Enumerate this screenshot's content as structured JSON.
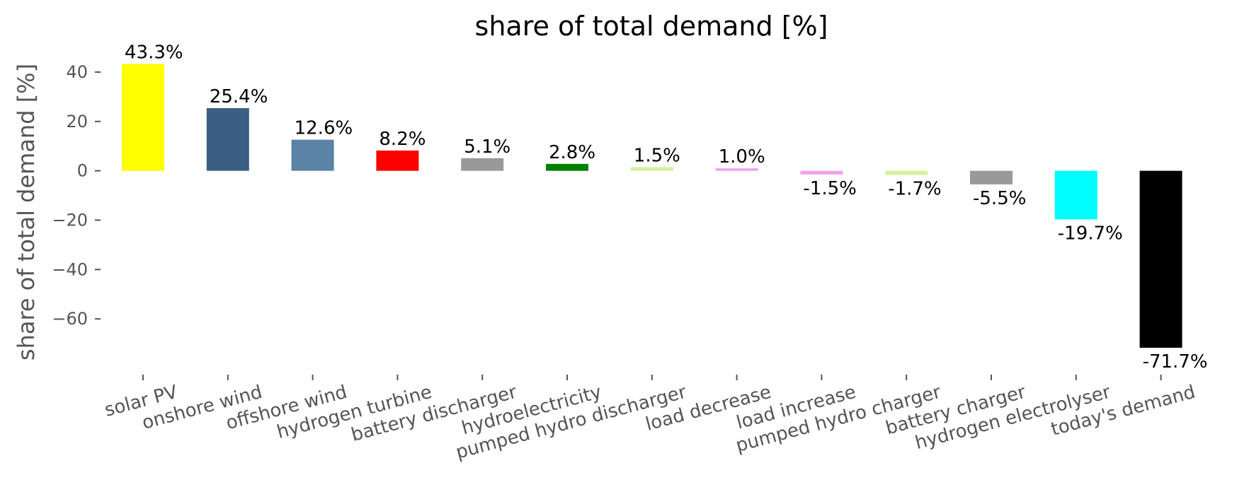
{
  "chart_data": {
    "type": "bar",
    "title": "share of total demand [%]",
    "xlabel": "",
    "ylabel": "share of total demand [%]",
    "ylim": [
      -78,
      44
    ],
    "yticks": [
      40,
      20,
      0,
      -20,
      -40,
      -60
    ],
    "ytick_labels": [
      "40",
      "20",
      "0",
      "−20",
      "−40",
      "−60"
    ],
    "grid": false,
    "categories": [
      "solar PV",
      "onshore wind",
      "offshore wind",
      "hydrogen turbine",
      "battery discharger",
      "hydroelectricity",
      "pumped hydro discharger",
      "load decrease",
      "load increase",
      "pumped hydro charger",
      "battery charger",
      "hydrogen electrolyser",
      "today's demand"
    ],
    "values": [
      43.3,
      25.4,
      12.6,
      8.2,
      5.1,
      2.8,
      1.5,
      1.0,
      -1.5,
      -1.7,
      -5.5,
      -19.7,
      -71.7
    ],
    "data_labels": [
      "43.3%",
      "25.4%",
      "12.6%",
      "8.2%",
      "5.1%",
      "2.8%",
      "1.5%",
      "1.0%",
      "-1.5%",
      "-1.7%",
      "-5.5%",
      "-19.7%",
      "-71.7%"
    ],
    "colors": [
      "#ffff00",
      "#3b5f82",
      "#5b83a6",
      "#ff0000",
      "#999999",
      "#008000",
      "#d4f0a0",
      "#f2a0f0",
      "#f2a0f0",
      "#d4f0a0",
      "#999999",
      "#00ffff",
      "#000000"
    ]
  }
}
